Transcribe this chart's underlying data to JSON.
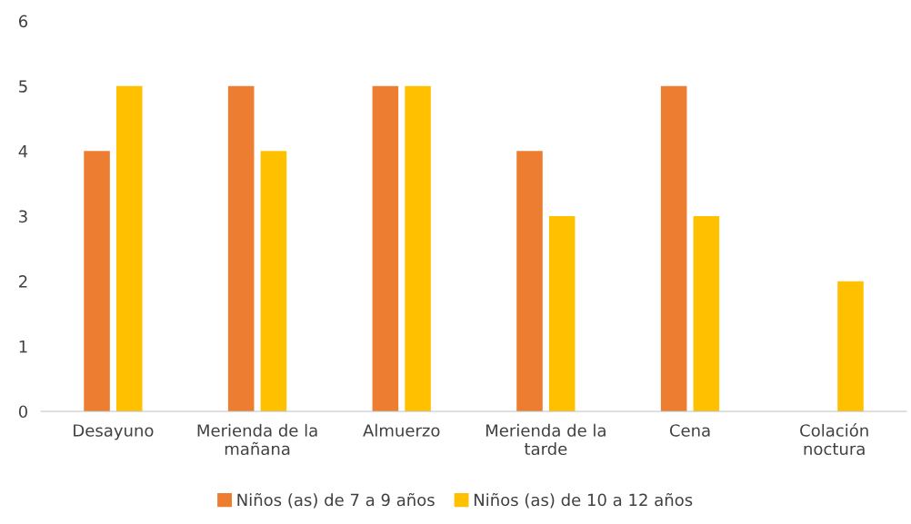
{
  "chart_data": {
    "type": "bar",
    "categories": [
      "Desayuno",
      "Merienda de la\nmañana",
      "Almuerzo",
      "Merienda de la\ntarde",
      "Cena",
      "Colación\nnoctura"
    ],
    "series": [
      {
        "name": "Niños (as) de 7 a 9 años",
        "color": "#ed7d31",
        "values": [
          4,
          5,
          5,
          4,
          5,
          0
        ]
      },
      {
        "name": "Niños (as) de 10 a 12 años",
        "color": "#ffc000",
        "values": [
          5,
          4,
          5,
          3,
          3,
          2
        ]
      }
    ],
    "ylim": [
      0,
      6
    ],
    "yticks": [
      0,
      1,
      2,
      3,
      4,
      5,
      6
    ],
    "grid": false,
    "legend": "bottom"
  }
}
